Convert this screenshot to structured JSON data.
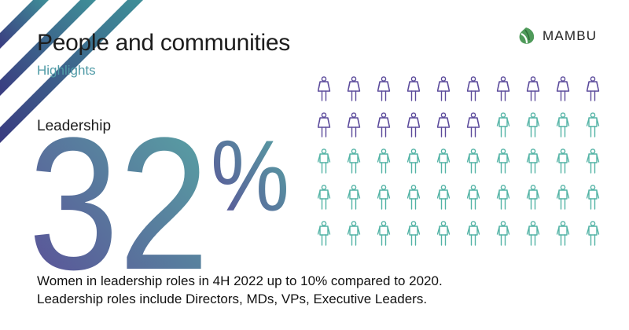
{
  "header": {
    "title": "People and communities",
    "subtitle": "Highlights"
  },
  "brand": {
    "name": "MAMBU",
    "logo_icon": "mambu-leaf-icon"
  },
  "stat": {
    "label": "Leadership",
    "value": 32,
    "value_text": "32",
    "unit": "%"
  },
  "pictogram": {
    "total": 50,
    "columns": 10,
    "rows": 5,
    "highlighted": 16,
    "highlight_icon": "woman-icon",
    "other_icon": "man-icon",
    "highlight_color": "#5b4a9b",
    "other_color": "#53b3a5"
  },
  "caption": {
    "line1": "Women in leadership roles in 4H 2022 up to 10% compared to 2020.",
    "line2": "Leadership roles include Directors, MDs, VPs, Executive Leaders."
  },
  "colors": {
    "gradient_start": "#5a4b97",
    "gradient_end": "#57a9a4",
    "accent_teal": "#4f9aa6",
    "stripe_purple": "#3f3d82",
    "stripe_teal": "#3f8a93"
  }
}
